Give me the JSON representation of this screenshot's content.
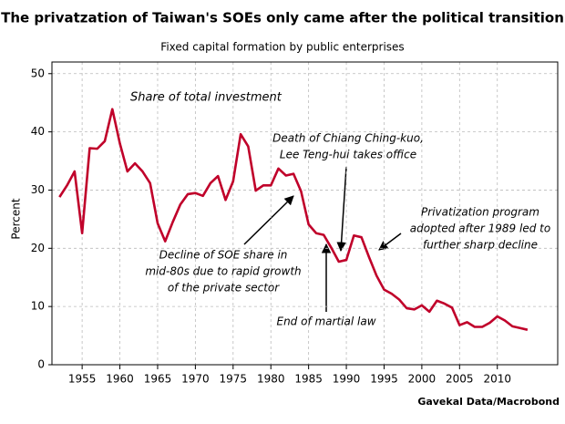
{
  "chart_data": {
    "type": "line",
    "title": "The privatzation of Taiwan's SOEs only came after the political transition",
    "subtitle": "Fixed capital formation by public enterprises",
    "y_label": "Percent",
    "source": "Gavekal Data/Macrobond",
    "x": [
      1952,
      1953,
      1954,
      1955,
      1956,
      1957,
      1958,
      1959,
      1960,
      1961,
      1962,
      1963,
      1964,
      1965,
      1966,
      1967,
      1968,
      1969,
      1970,
      1971,
      1972,
      1973,
      1974,
      1975,
      1976,
      1977,
      1978,
      1979,
      1980,
      1981,
      1982,
      1983,
      1984,
      1985,
      1986,
      1987,
      1988,
      1989,
      1990,
      1991,
      1992,
      1993,
      1994,
      1995,
      1996,
      1997,
      1998,
      1999,
      2000,
      2001,
      2002,
      2003,
      2004,
      2005,
      2006,
      2007,
      2008,
      2009,
      2010,
      2011,
      2012,
      2013,
      2014
    ],
    "series": [
      {
        "name": "Share of total investment",
        "color": "#c0002a",
        "values": [
          28.8,
          30.8,
          33.2,
          22.6,
          37.2,
          37.1,
          38.4,
          43.9,
          38,
          33.2,
          34.6,
          33.2,
          31.2,
          24.3,
          21.2,
          24.5,
          27.5,
          29.3,
          29.5,
          29.0,
          31.2,
          32.4,
          28.3,
          31.5,
          39.6,
          37.5,
          29.9,
          30.8,
          30.8,
          33.7,
          32.5,
          32.8,
          29.8,
          24.1,
          22.6,
          22.3,
          20.1,
          17.7,
          18.0,
          22.2,
          21.9,
          18.5,
          15.3,
          12.9,
          12.2,
          11.2,
          9.7,
          9.5,
          10.2,
          9.1,
          11.0,
          10.5,
          9.8,
          6.8,
          7.3,
          6.5,
          6.5,
          7.2,
          8.3,
          7.6,
          6.6,
          6.3,
          6.0
        ]
      }
    ],
    "xlim": [
      1951,
      2018
    ],
    "xticks": [
      1955,
      1960,
      1965,
      1970,
      1975,
      1980,
      1985,
      1990,
      1995,
      2000,
      2005,
      2010
    ],
    "ylim": [
      0,
      52
    ],
    "yticks": [
      0,
      10,
      20,
      30,
      40,
      50
    ],
    "grid": true,
    "annotations": [
      {
        "text": [
          "Death of Chiang Ching-kuo,",
          "Lee Teng-hui takes office"
        ]
      },
      {
        "text": [
          "Privatization program",
          "adopted after 1989 led to",
          "further sharp decline"
        ]
      },
      {
        "text": [
          "Decline of SOE share in",
          "mid-80s due to rapid growth",
          "of the private sector"
        ]
      },
      {
        "text": [
          "End of martial law"
        ]
      }
    ]
  }
}
